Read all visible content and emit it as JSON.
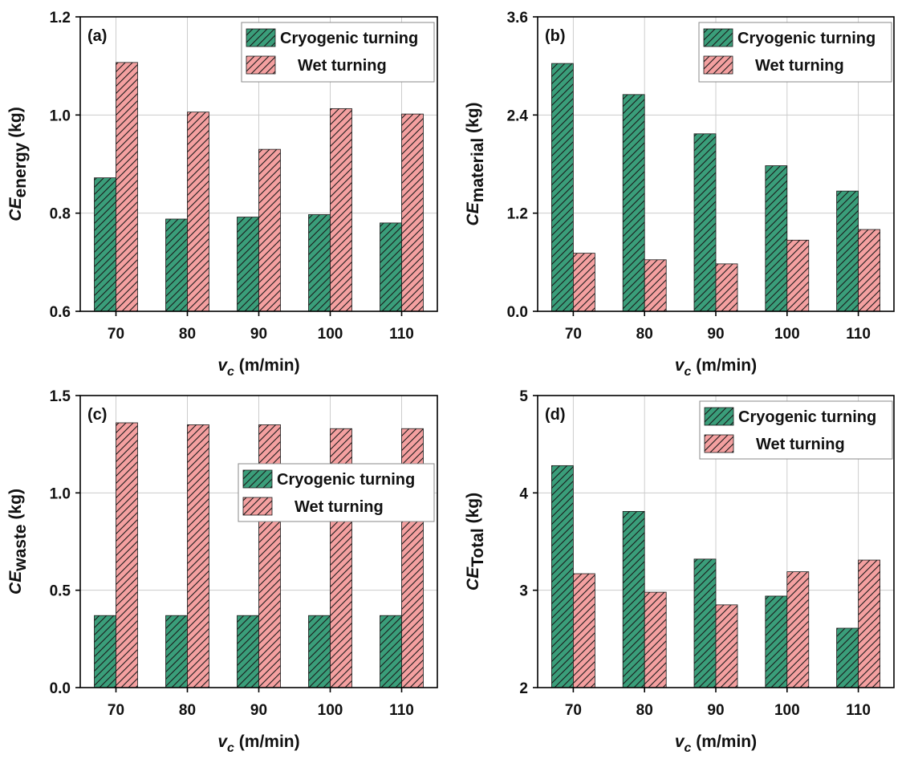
{
  "colors": {
    "cryogenic": "#3a9e7a",
    "wet": "#f4a0a0",
    "hatch": "#1a1a1a",
    "grid": "#cccccc",
    "axis": "#000000"
  },
  "chart_data": [
    {
      "type": "bar",
      "panel_label": "(a)",
      "categories": [
        "70",
        "80",
        "90",
        "100",
        "110"
      ],
      "series": [
        {
          "name": "Cryogenic turning",
          "values": [
            0.872,
            0.788,
            0.792,
            0.797,
            0.78
          ]
        },
        {
          "name": "Wet turning",
          "values": [
            1.107,
            1.006,
            0.93,
            1.013,
            1.002
          ]
        }
      ],
      "ylim": [
        0.6,
        1.2
      ],
      "yticks": [
        "0.6",
        "0.8",
        "1.0",
        "1.2"
      ],
      "ylabel_main": "CE",
      "ylabel_sub": "energy",
      "ylabel_unit": " (kg)",
      "xlabel_main": "v",
      "xlabel_sub": "c",
      "xlabel_unit": " (m/min)",
      "legend_position": "top-right"
    },
    {
      "type": "bar",
      "panel_label": "(b)",
      "categories": [
        "70",
        "80",
        "90",
        "100",
        "110"
      ],
      "series": [
        {
          "name": "Cryogenic turning",
          "values": [
            3.03,
            2.65,
            2.17,
            1.78,
            1.47
          ]
        },
        {
          "name": "Wet turning",
          "values": [
            0.71,
            0.63,
            0.58,
            0.87,
            1.0
          ]
        }
      ],
      "ylim": [
        0.0,
        3.6
      ],
      "yticks": [
        "0.0",
        "1.2",
        "2.4",
        "3.6"
      ],
      "ylabel_main": "CE",
      "ylabel_sub": "material",
      "ylabel_unit": " (kg)",
      "xlabel_main": "v",
      "xlabel_sub": "c",
      "xlabel_unit": " (m/min)",
      "legend_position": "top-right"
    },
    {
      "type": "bar",
      "panel_label": "(c)",
      "categories": [
        "70",
        "80",
        "90",
        "100",
        "110"
      ],
      "series": [
        {
          "name": "Cryogenic turning",
          "values": [
            0.37,
            0.37,
            0.37,
            0.37,
            0.37
          ]
        },
        {
          "name": "Wet turning",
          "values": [
            1.36,
            1.35,
            1.35,
            1.33,
            1.33
          ]
        }
      ],
      "ylim": [
        0.0,
        1.5
      ],
      "yticks": [
        "0.0",
        "0.5",
        "1.0",
        "1.5"
      ],
      "ylabel_main": "CE",
      "ylabel_sub": "waste",
      "ylabel_unit": " (kg)",
      "xlabel_main": "v",
      "xlabel_sub": "c",
      "xlabel_unit": " (m/min)",
      "legend_position": "center-right"
    },
    {
      "type": "bar",
      "panel_label": "(d)",
      "categories": [
        "70",
        "80",
        "90",
        "100",
        "110"
      ],
      "series": [
        {
          "name": "Cryogenic turning",
          "values": [
            4.28,
            3.81,
            3.32,
            2.94,
            2.61
          ]
        },
        {
          "name": "Wet turning",
          "values": [
            3.17,
            2.98,
            2.85,
            3.19,
            3.31
          ]
        }
      ],
      "ylim": [
        2,
        5
      ],
      "yticks": [
        "2",
        "3",
        "4",
        "5"
      ],
      "ylabel_main": "CE",
      "ylabel_sub": "Total",
      "ylabel_unit": " (kg)",
      "xlabel_main": "v",
      "xlabel_sub": "c",
      "xlabel_unit": " (m/min)",
      "legend_position": "top-right"
    }
  ]
}
